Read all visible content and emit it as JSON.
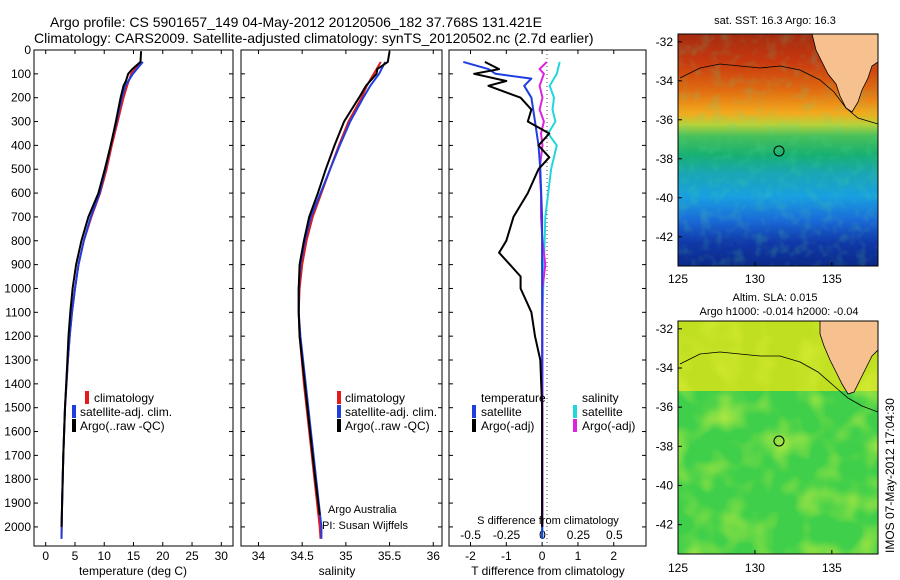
{
  "title": {
    "line1": "Argo profile: CS 5901657_149 04-May-2012 20120506_182 37.768S 131.421E",
    "line2": "Climatology: CARS2009. Satellite-adjusted climatology: synTS_20120502.nc (2.7d earlier)"
  },
  "colors": {
    "climatology": "#e41a1c",
    "satellite": "#1f3ee0",
    "argo": "#000000",
    "salinity_sat": "#22d6dd",
    "salinity_argo": "#dd22dd",
    "land": "#f7c08f"
  },
  "depth_ticks": [
    "0",
    "100",
    "200",
    "300",
    "400",
    "500",
    "600",
    "700",
    "800",
    "900",
    "1000",
    "1100",
    "1200",
    "1300",
    "1400",
    "1500",
    "1600",
    "1700",
    "1800",
    "1900",
    "2000"
  ],
  "panel_temp": {
    "xlabel": "temperature (deg C)",
    "xticks": [
      "0",
      "5",
      "10",
      "15",
      "20",
      "25",
      "30"
    ],
    "legend": [
      "climatology",
      "satellite-adj. clim.",
      "Argo(..raw -QC)"
    ]
  },
  "panel_sal": {
    "xlabel": "salinity",
    "xticks": [
      "34",
      "34.5",
      "35",
      "35.5",
      "36"
    ],
    "legend": [
      "climatology",
      "satellite-adj. clim.",
      "Argo(..raw -QC)"
    ],
    "note1": "Argo Australia",
    "note2": "PI: Susan Wijffels"
  },
  "panel_diff": {
    "xlabel": "T difference from climatology",
    "s_label": "S difference from climatology",
    "xticks_T": [
      "-2",
      "-1",
      "0",
      "1",
      "2"
    ],
    "xticks_S": [
      "-0.5",
      "-0.25",
      "0",
      "0.25",
      "0.5"
    ],
    "legend_temp_head": "temperature",
    "legend_sal_head": "salinity",
    "legend_temp": [
      "satellite",
      "Argo(-adj)"
    ],
    "legend_sal": [
      "satellite",
      "Argo(-adj)"
    ]
  },
  "map_sst": {
    "title": "sat. SST: 16.3 Argo: 16.3",
    "yticks": [
      "-32",
      "-34",
      "-36",
      "-38",
      "-40",
      "-42"
    ],
    "xticks": [
      "125",
      "130",
      "135"
    ]
  },
  "map_sla": {
    "title1": "Altim. SLA: 0.015",
    "title2": "Argo h1000: -0.014 h2000: -0.04",
    "yticks": [
      "-32",
      "-34",
      "-36",
      "-38",
      "-40",
      "-42"
    ],
    "xticks": [
      "125",
      "130",
      "135"
    ]
  },
  "stamp": "IMOS 07-May-2012 17:04:30",
  "chart_data": [
    {
      "type": "line",
      "title": "",
      "xlabel": "temperature (deg C)",
      "ylabel": "",
      "xlim": [
        -2,
        32
      ],
      "ylim": [
        2080,
        0
      ],
      "series": [
        {
          "name": "climatology",
          "color": "#e41a1c",
          "depth": [
            50,
            100,
            150,
            200,
            300,
            400,
            500,
            600,
            700,
            800,
            900,
            1000,
            1100,
            1200,
            1300,
            1500,
            1700,
            1900,
            2050
          ],
          "values": [
            16.3,
            14.6,
            13.9,
            13.3,
            12.3,
            11.3,
            10.4,
            9.3,
            7.8,
            6.5,
            5.6,
            5.0,
            4.5,
            4.1,
            3.8,
            3.3,
            3.0,
            2.8,
            2.7
          ]
        },
        {
          "name": "satellite-adj. clim.",
          "color": "#1f3ee0",
          "depth": [
            50,
            100,
            150,
            200,
            300,
            400,
            500,
            600,
            700,
            800,
            900,
            1000,
            1100,
            1200,
            1300,
            1500,
            1700,
            1900,
            2050
          ],
          "values": [
            16.6,
            14.9,
            13.6,
            13.0,
            12.1,
            11.1,
            10.2,
            9.2,
            7.7,
            6.5,
            5.6,
            5.0,
            4.5,
            4.1,
            3.8,
            3.3,
            3.0,
            2.8,
            2.7
          ]
        },
        {
          "name": "Argo(..raw -QC)",
          "color": "#000000",
          "depth": [
            5,
            50,
            80,
            100,
            130,
            150,
            200,
            300,
            400,
            500,
            600,
            700,
            800,
            900,
            1000,
            1100,
            1200,
            1300,
            1500,
            1700,
            1900,
            2000
          ],
          "values": [
            16.3,
            16.2,
            14.8,
            14.1,
            13.7,
            13.3,
            12.8,
            12.0,
            11.1,
            10.1,
            9.0,
            7.3,
            6.1,
            5.2,
            4.6,
            4.2,
            3.9,
            3.7,
            3.3,
            3.0,
            2.8,
            2.7
          ]
        }
      ]
    },
    {
      "type": "line",
      "title": "",
      "xlabel": "salinity",
      "ylabel": "",
      "xlim": [
        33.8,
        36.1
      ],
      "ylim": [
        2080,
        0
      ],
      "series": [
        {
          "name": "climatology",
          "color": "#e41a1c",
          "depth": [
            50,
            100,
            150,
            200,
            300,
            400,
            500,
            600,
            700,
            800,
            900,
            1000,
            1100,
            1200,
            1400,
            1600,
            1800,
            2000,
            2050
          ],
          "values": [
            35.4,
            35.32,
            35.24,
            35.18,
            35.03,
            34.92,
            34.82,
            34.72,
            34.62,
            34.55,
            34.5,
            34.47,
            34.46,
            34.47,
            34.52,
            34.58,
            34.64,
            34.7,
            34.71
          ]
        },
        {
          "name": "satellite-adj. clim.",
          "color": "#1f3ee0",
          "depth": [
            50,
            100,
            150,
            200,
            300,
            400,
            500,
            600,
            700,
            800,
            900,
            1000,
            1100,
            1200,
            1400,
            1600,
            1800,
            2000,
            2050
          ],
          "values": [
            35.45,
            35.38,
            35.28,
            35.2,
            35.05,
            34.93,
            34.82,
            34.71,
            34.6,
            34.53,
            34.48,
            34.46,
            34.46,
            34.48,
            34.54,
            34.6,
            34.66,
            34.72,
            34.72
          ]
        },
        {
          "name": "Argo(..raw -QC)",
          "color": "#000000",
          "depth": [
            5,
            50,
            80,
            100,
            150,
            200,
            300,
            400,
            500,
            600,
            700,
            800,
            900,
            1000,
            1100,
            1200,
            1400,
            1600,
            1800,
            1950
          ],
          "values": [
            35.5,
            35.48,
            35.36,
            35.35,
            35.23,
            35.15,
            34.98,
            34.87,
            34.77,
            34.68,
            34.58,
            34.52,
            34.47,
            34.46,
            34.46,
            34.47,
            34.53,
            34.59,
            34.65,
            34.7
          ]
        }
      ]
    },
    {
      "type": "line",
      "title": "",
      "xlabel": "T difference from climatology",
      "ylabel": "",
      "xlim": [
        -2.6,
        2.9
      ],
      "ylim": [
        2080,
        0
      ],
      "series": [
        {
          "name": "temperature satellite",
          "color": "#1f3ee0",
          "depth": [
            50,
            80,
            100,
            120,
            150,
            200,
            300,
            400,
            500,
            700,
            900,
            1100,
            1300,
            1500,
            1700,
            1900,
            2050
          ],
          "values": [
            -2.2,
            -1.5,
            -1.3,
            -0.3,
            -0.5,
            -0.3,
            -0.2,
            -0.1,
            -0.05,
            0,
            0,
            0,
            0,
            0,
            0,
            0,
            0
          ]
        },
        {
          "name": "temperature Argo(-adj)",
          "color": "#000000",
          "depth": [
            50,
            80,
            100,
            130,
            150,
            200,
            250,
            300,
            350,
            400,
            450,
            500,
            600,
            700,
            800,
            850,
            900,
            950,
            1000,
            1100,
            1200,
            1300,
            1500,
            1700,
            1900,
            2000
          ],
          "values": [
            -1.6,
            -1.2,
            -1.9,
            -1.0,
            -1.5,
            -0.6,
            -0.3,
            -0.4,
            0.2,
            -0.1,
            0.2,
            -0.1,
            -0.4,
            -0.8,
            -1.0,
            -1.2,
            -0.9,
            -0.6,
            -0.6,
            -0.3,
            -0.2,
            -0.05,
            0,
            0,
            0,
            0
          ]
        }
      ]
    },
    {
      "type": "line",
      "title": "",
      "xlabel": "S difference from climatology",
      "ylabel": "",
      "xlim": [
        -0.65,
        0.72
      ],
      "ylim": [
        2080,
        0
      ],
      "series": [
        {
          "name": "salinity satellite",
          "color": "#22d6dd",
          "depth": [
            50,
            100,
            150,
            200,
            250,
            300,
            350,
            400,
            500,
            600,
            700,
            900,
            1100,
            1300,
            1500,
            1700,
            1900,
            2050
          ],
          "values": [
            0.12,
            0.1,
            0.05,
            0.08,
            0.07,
            0.09,
            0.04,
            0.1,
            0.06,
            0.04,
            0.02,
            0.01,
            0,
            0,
            0,
            0,
            0,
            0
          ]
        },
        {
          "name": "salinity Argo(-adj)",
          "color": "#dd22dd",
          "depth": [
            50,
            80,
            100,
            150,
            200,
            250,
            300,
            350,
            400,
            500,
            600,
            700,
            800,
            900,
            1000,
            1100,
            1200,
            1400,
            1600,
            1800,
            2000
          ],
          "values": [
            0.03,
            -0.02,
            0.01,
            -0.02,
            0.0,
            -0.02,
            0.01,
            -0.01,
            0.0,
            -0.02,
            -0.01,
            -0.01,
            0.0,
            0.02,
            0.0,
            0.0,
            0.0,
            0.0,
            0.0,
            0.0,
            0.0
          ]
        }
      ]
    },
    {
      "type": "heatmap",
      "title": "sat. SST: 16.3 Argo: 16.3",
      "xlabel": "",
      "ylabel": "",
      "xlim": [
        125,
        138
      ],
      "ylim": [
        -43.5,
        -31.6
      ],
      "xticks": [
        125,
        130,
        135
      ],
      "yticks": [
        -32,
        -34,
        -36,
        -38,
        -40,
        -42
      ],
      "argo_position": {
        "lon": 131.421,
        "lat": -37.768
      }
    },
    {
      "type": "heatmap",
      "title": "Altim. SLA: 0.015",
      "xlabel": "",
      "ylabel": "",
      "xlim": [
        125,
        138
      ],
      "ylim": [
        -43.5,
        -31.6
      ],
      "xticks": [
        125,
        130,
        135
      ],
      "yticks": [
        -32,
        -34,
        -36,
        -38,
        -40,
        -42
      ],
      "argo_position": {
        "lon": 131.421,
        "lat": -37.768
      }
    }
  ]
}
